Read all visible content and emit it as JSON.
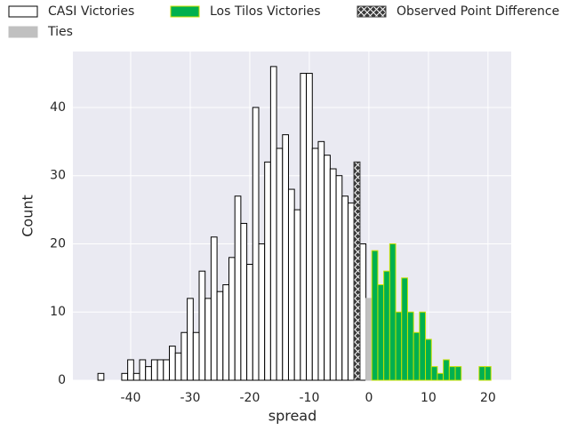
{
  "chart_data": {
    "type": "histogram",
    "x_label": "spread",
    "y_label": "Count",
    "xlim": [
      -49.7,
      23.9
    ],
    "ylim": [
      0,
      48.2
    ],
    "xticks": [
      -40,
      -30,
      -20,
      -10,
      0,
      10,
      20
    ],
    "yticks": [
      0,
      10,
      20,
      30,
      40
    ],
    "grid": true,
    "series": [
      {
        "name": "CASI Victories",
        "color": "#ffffff",
        "edgecolor": "#000000",
        "bins": [
          -45.5,
          -44.5,
          -43.5,
          -42.5,
          -41.5,
          -40.5,
          -39.5,
          -38.5,
          -37.5,
          -36.5,
          -35.5,
          -34.5,
          -33.5,
          -32.5,
          -31.5,
          -30.5,
          -29.5,
          -28.5,
          -27.5,
          -26.5,
          -25.5,
          -24.5,
          -23.5,
          -22.5,
          -21.5,
          -20.5,
          -19.5,
          -18.5,
          -17.5,
          -16.5,
          -15.5,
          -14.5,
          -13.5,
          -12.5,
          -11.5,
          -10.5,
          -9.5,
          -8.5,
          -7.5,
          -6.5,
          -5.5,
          -4.5,
          -3.5,
          -2.5,
          -1.5,
          -0.5
        ],
        "values": [
          1,
          0,
          0,
          0,
          1,
          3,
          1,
          3,
          2,
          3,
          3,
          3,
          5,
          4,
          7,
          12,
          7,
          16,
          12,
          21,
          13,
          14,
          18,
          27,
          23,
          17,
          40,
          20,
          32,
          46,
          34,
          36,
          28,
          25,
          45,
          45,
          34,
          35,
          33,
          31,
          30,
          27,
          26,
          0,
          20
        ]
      },
      {
        "name": "Ties",
        "color": "#c0c0c0",
        "edgecolor": "#c0c0c0",
        "bins": [
          -0.5,
          0.5
        ],
        "values": [
          12
        ]
      },
      {
        "name": "Los Tilos Victories",
        "color": "#00b04f",
        "edgecolor": "#c8e000",
        "bins": [
          0.5,
          1.5,
          2.5,
          3.5,
          4.5,
          5.5,
          6.5,
          7.5,
          8.5,
          9.5,
          10.5,
          11.5,
          12.5,
          13.5,
          14.5,
          15.5,
          16.5,
          17.5,
          18.5,
          19.5,
          20.5
        ],
        "values": [
          19,
          14,
          16,
          20,
          10,
          15,
          10,
          7,
          10,
          6,
          2,
          1,
          3,
          2,
          2,
          0,
          0,
          0,
          2,
          2
        ]
      },
      {
        "name": "Observed Point Difference",
        "color": "#3a3a3a",
        "edgecolor": "#3a3a3a",
        "hatch": "x",
        "bins": [
          -2.5,
          -1.5
        ],
        "values": [
          32
        ]
      }
    ]
  }
}
